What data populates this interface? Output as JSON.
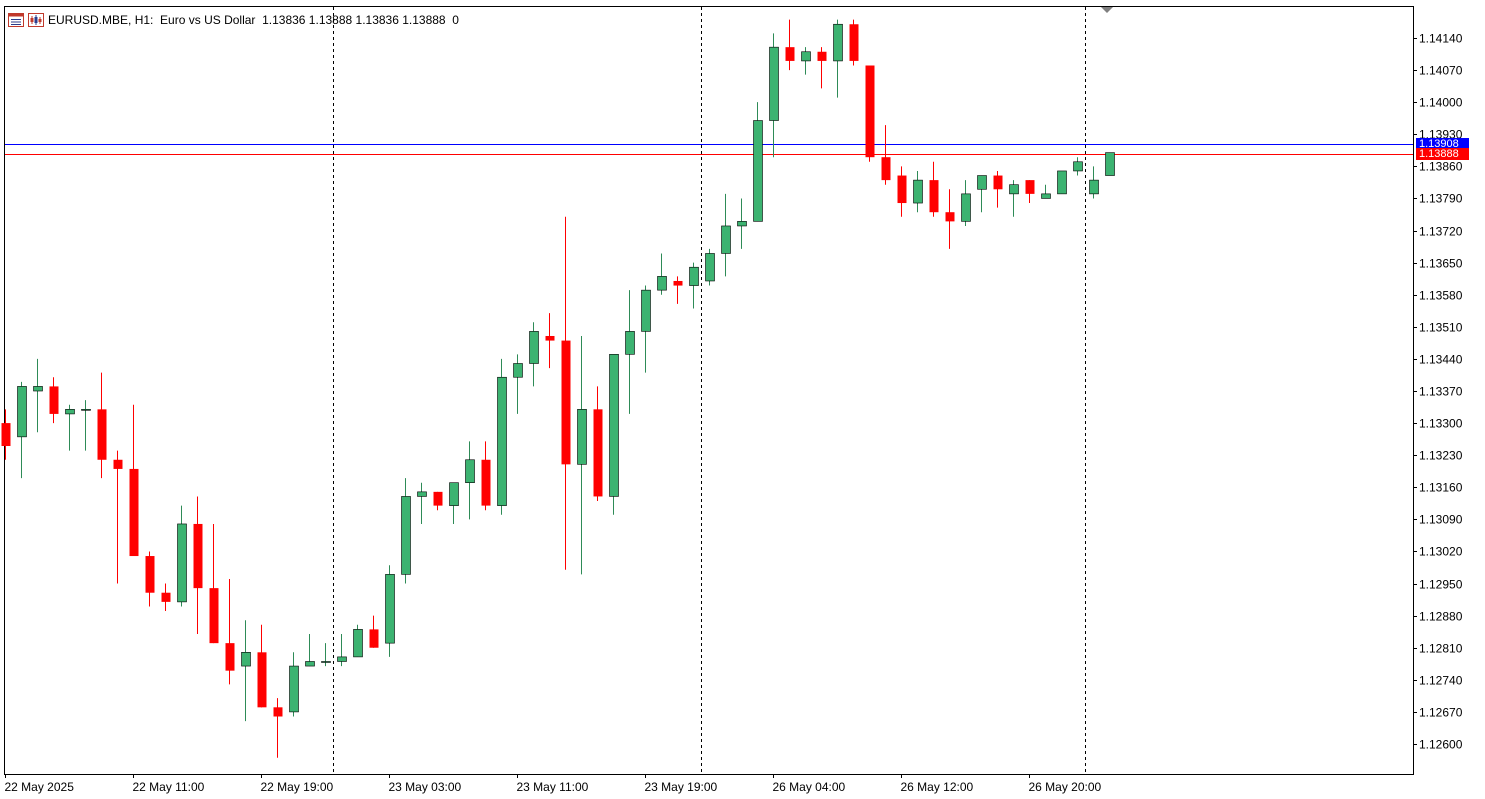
{
  "header": {
    "symbol": "EURUSD.MBE",
    "timeframe": "H1:",
    "description": "Euro vs US Dollar",
    "ohlc": "1.13836 1.13888 1.13836 1.13888",
    "volume": "0",
    "icons": [
      "window-icon",
      "chart-icon"
    ]
  },
  "price_lines": {
    "ask": {
      "value": 1.13908,
      "label": "1.13908",
      "color": "#0000ff"
    },
    "bid": {
      "value": 1.13888,
      "label": "1.13888",
      "color": "#ff0000"
    }
  },
  "colors": {
    "bull_fill": "#3cb371",
    "bear_fill": "#ff0000",
    "wick_bull": "#2e8b57",
    "wick_bear": "#ff0000",
    "grid_separator": "#000000"
  },
  "chart_data": {
    "type": "candlestick",
    "ylim": [
      1.1254,
      1.1422
    ],
    "y_ticks": [
      "1.14140",
      "1.14070",
      "1.14000",
      "1.13930",
      "1.13860",
      "1.13790",
      "1.13720",
      "1.13650",
      "1.13580",
      "1.13510",
      "1.13440",
      "1.13370",
      "1.13300",
      "1.13230",
      "1.13160",
      "1.13090",
      "1.13020",
      "1.12950",
      "1.12880",
      "1.12810",
      "1.12740",
      "1.12670",
      "1.12600"
    ],
    "y_tick_values": [
      1.1414,
      1.1407,
      1.14,
      1.1393,
      1.1386,
      1.1379,
      1.1372,
      1.1365,
      1.1358,
      1.1351,
      1.1344,
      1.1337,
      1.133,
      1.1323,
      1.1316,
      1.1309,
      1.1302,
      1.1295,
      1.1288,
      1.1281,
      1.1274,
      1.1267,
      1.126
    ],
    "x_labels": [
      {
        "label": "22 May 2025",
        "index": 0
      },
      {
        "label": "22 May 11:00",
        "index": 8
      },
      {
        "label": "22 May 19:00",
        "index": 16
      },
      {
        "label": "23 May 03:00",
        "index": 24
      },
      {
        "label": "23 May 11:00",
        "index": 32
      },
      {
        "label": "23 May 19:00",
        "index": 40
      },
      {
        "label": "26 May 04:00",
        "index": 48
      },
      {
        "label": "26 May 12:00",
        "index": 56
      },
      {
        "label": "26 May 20:00",
        "index": 64
      }
    ],
    "day_separators": [
      20.5,
      43.5,
      67.5
    ],
    "candles": [
      {
        "o": 1.133,
        "h": 1.1333,
        "l": 1.1322,
        "c": 1.1325
      },
      {
        "o": 1.1327,
        "h": 1.1339,
        "l": 1.1318,
        "c": 1.1338
      },
      {
        "o": 1.1337,
        "h": 1.1344,
        "l": 1.1328,
        "c": 1.1338
      },
      {
        "o": 1.1338,
        "h": 1.134,
        "l": 1.133,
        "c": 1.1332
      },
      {
        "o": 1.1332,
        "h": 1.1334,
        "l": 1.1324,
        "c": 1.1333
      },
      {
        "o": 1.1333,
        "h": 1.1335,
        "l": 1.1324,
        "c": 1.1333
      },
      {
        "o": 1.1333,
        "h": 1.1341,
        "l": 1.1318,
        "c": 1.1322
      },
      {
        "o": 1.1322,
        "h": 1.1324,
        "l": 1.1295,
        "c": 1.132
      },
      {
        "o": 1.132,
        "h": 1.1334,
        "l": 1.1301,
        "c": 1.1301
      },
      {
        "o": 1.1301,
        "h": 1.1302,
        "l": 1.129,
        "c": 1.1293
      },
      {
        "o": 1.1293,
        "h": 1.1295,
        "l": 1.1289,
        "c": 1.1291
      },
      {
        "o": 1.1291,
        "h": 1.1312,
        "l": 1.129,
        "c": 1.1308
      },
      {
        "o": 1.1308,
        "h": 1.1314,
        "l": 1.1284,
        "c": 1.1294
      },
      {
        "o": 1.1294,
        "h": 1.1308,
        "l": 1.1282,
        "c": 1.1282
      },
      {
        "o": 1.1282,
        "h": 1.1296,
        "l": 1.1273,
        "c": 1.1276
      },
      {
        "o": 1.1277,
        "h": 1.1287,
        "l": 1.1265,
        "c": 1.128
      },
      {
        "o": 1.128,
        "h": 1.1286,
        "l": 1.1268,
        "c": 1.1268
      },
      {
        "o": 1.1268,
        "h": 1.127,
        "l": 1.1257,
        "c": 1.1266
      },
      {
        "o": 1.1267,
        "h": 1.128,
        "l": 1.1266,
        "c": 1.1277
      },
      {
        "o": 1.1277,
        "h": 1.1284,
        "l": 1.1277,
        "c": 1.1278
      },
      {
        "o": 1.1278,
        "h": 1.1282,
        "l": 1.1277,
        "c": 1.1278
      },
      {
        "o": 1.1278,
        "h": 1.1284,
        "l": 1.1277,
        "c": 1.1279
      },
      {
        "o": 1.1279,
        "h": 1.1286,
        "l": 1.1279,
        "c": 1.1285
      },
      {
        "o": 1.1285,
        "h": 1.1288,
        "l": 1.1281,
        "c": 1.1281
      },
      {
        "o": 1.1282,
        "h": 1.1299,
        "l": 1.1279,
        "c": 1.1297
      },
      {
        "o": 1.1297,
        "h": 1.1318,
        "l": 1.1295,
        "c": 1.1314
      },
      {
        "o": 1.1314,
        "h": 1.1317,
        "l": 1.1308,
        "c": 1.1315
      },
      {
        "o": 1.1315,
        "h": 1.1315,
        "l": 1.1311,
        "c": 1.1312
      },
      {
        "o": 1.1312,
        "h": 1.1317,
        "l": 1.1308,
        "c": 1.1317
      },
      {
        "o": 1.1317,
        "h": 1.1326,
        "l": 1.1309,
        "c": 1.1322
      },
      {
        "o": 1.1322,
        "h": 1.1326,
        "l": 1.1311,
        "c": 1.1312
      },
      {
        "o": 1.1312,
        "h": 1.1344,
        "l": 1.131,
        "c": 1.134
      },
      {
        "o": 1.134,
        "h": 1.1345,
        "l": 1.1332,
        "c": 1.1343
      },
      {
        "o": 1.1343,
        "h": 1.1352,
        "l": 1.1338,
        "c": 1.135
      },
      {
        "o": 1.1349,
        "h": 1.1354,
        "l": 1.1342,
        "c": 1.1348
      },
      {
        "o": 1.1348,
        "h": 1.1375,
        "l": 1.1298,
        "c": 1.1321
      },
      {
        "o": 1.1321,
        "h": 1.1349,
        "l": 1.1297,
        "c": 1.1333
      },
      {
        "o": 1.1333,
        "h": 1.1338,
        "l": 1.1313,
        "c": 1.1314
      },
      {
        "o": 1.1314,
        "h": 1.1345,
        "l": 1.131,
        "c": 1.1345
      },
      {
        "o": 1.1345,
        "h": 1.1359,
        "l": 1.1332,
        "c": 1.135
      },
      {
        "o": 1.135,
        "h": 1.136,
        "l": 1.1341,
        "c": 1.1359
      },
      {
        "o": 1.1359,
        "h": 1.1367,
        "l": 1.1358,
        "c": 1.1362
      },
      {
        "o": 1.1361,
        "h": 1.1362,
        "l": 1.1356,
        "c": 1.136
      },
      {
        "o": 1.136,
        "h": 1.1365,
        "l": 1.1355,
        "c": 1.1364
      },
      {
        "o": 1.1361,
        "h": 1.1368,
        "l": 1.136,
        "c": 1.1367
      },
      {
        "o": 1.1367,
        "h": 1.138,
        "l": 1.1362,
        "c": 1.1373
      },
      {
        "o": 1.1373,
        "h": 1.1379,
        "l": 1.1368,
        "c": 1.1374
      },
      {
        "o": 1.1374,
        "h": 1.14,
        "l": 1.1374,
        "c": 1.1396
      },
      {
        "o": 1.1396,
        "h": 1.1415,
        "l": 1.1388,
        "c": 1.1412
      },
      {
        "o": 1.1412,
        "h": 1.1418,
        "l": 1.1407,
        "c": 1.1409
      },
      {
        "o": 1.1409,
        "h": 1.1412,
        "l": 1.1406,
        "c": 1.1411
      },
      {
        "o": 1.1411,
        "h": 1.1412,
        "l": 1.1403,
        "c": 1.1409
      },
      {
        "o": 1.1409,
        "h": 1.1418,
        "l": 1.1401,
        "c": 1.1417
      },
      {
        "o": 1.1417,
        "h": 1.1418,
        "l": 1.1408,
        "c": 1.1409
      },
      {
        "o": 1.1408,
        "h": 1.1408,
        "l": 1.1387,
        "c": 1.1388
      },
      {
        "o": 1.1388,
        "h": 1.1395,
        "l": 1.1382,
        "c": 1.1383
      },
      {
        "o": 1.1384,
        "h": 1.1386,
        "l": 1.1375,
        "c": 1.1378
      },
      {
        "o": 1.1378,
        "h": 1.1385,
        "l": 1.1376,
        "c": 1.1383
      },
      {
        "o": 1.1383,
        "h": 1.1387,
        "l": 1.1375,
        "c": 1.1376
      },
      {
        "o": 1.1376,
        "h": 1.1381,
        "l": 1.1368,
        "c": 1.1374
      },
      {
        "o": 1.1374,
        "h": 1.1383,
        "l": 1.1373,
        "c": 1.138
      },
      {
        "o": 1.1381,
        "h": 1.1384,
        "l": 1.1376,
        "c": 1.1384
      },
      {
        "o": 1.1384,
        "h": 1.1385,
        "l": 1.1377,
        "c": 1.1381
      },
      {
        "o": 1.138,
        "h": 1.1383,
        "l": 1.1375,
        "c": 1.1382
      },
      {
        "o": 1.1383,
        "h": 1.1383,
        "l": 1.1378,
        "c": 1.138
      },
      {
        "o": 1.1379,
        "h": 1.1382,
        "l": 1.1379,
        "c": 1.138
      },
      {
        "o": 1.138,
        "h": 1.1385,
        "l": 1.138,
        "c": 1.1385
      },
      {
        "o": 1.1385,
        "h": 1.1388,
        "l": 1.1384,
        "c": 1.1387
      },
      {
        "o": 1.138,
        "h": 1.1386,
        "l": 1.1379,
        "c": 1.1383
      },
      {
        "o": 1.1384,
        "h": 1.1389,
        "l": 1.1384,
        "c": 1.1389
      }
    ]
  }
}
